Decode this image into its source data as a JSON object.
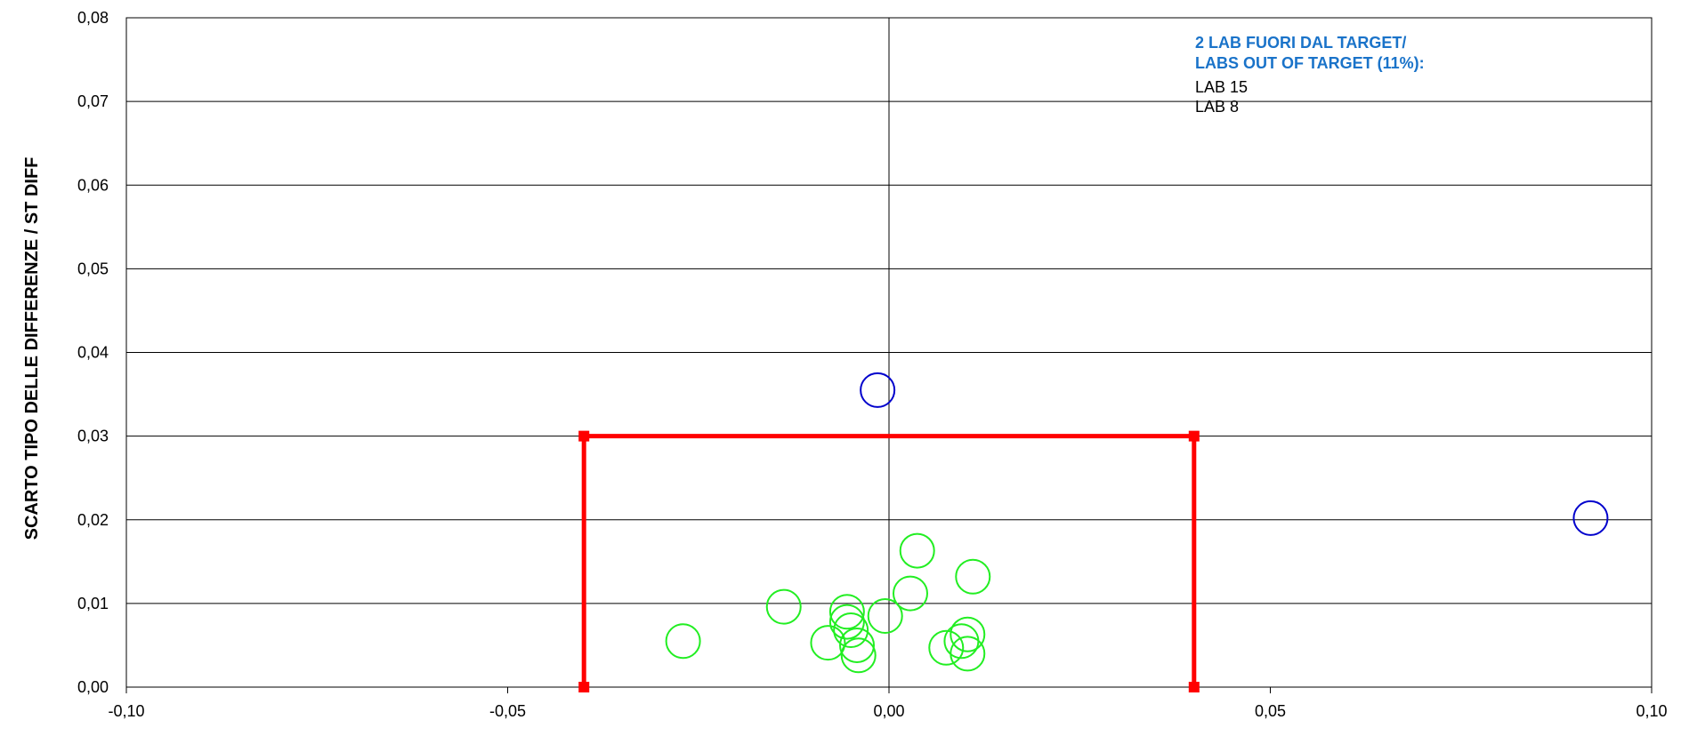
{
  "chart_data": {
    "type": "scatter",
    "title": "",
    "xlabel": "",
    "ylabel": "SCARTO TIPO DELLE DIFFERENZE / ST DIFF",
    "xlim": [
      -0.1,
      0.1
    ],
    "ylim": [
      0.0,
      0.08
    ],
    "x_ticks": [
      "-0,10",
      "-0,05",
      "0,00",
      "0,05",
      "0,10"
    ],
    "y_ticks": [
      "0,00",
      "0,01",
      "0,02",
      "0,03",
      "0,04",
      "0,05",
      "0,06",
      "0,07",
      "0,08"
    ],
    "grid": "horizontal",
    "target_box": {
      "color": "#ff0000",
      "x": [
        -0.04,
        0.04
      ],
      "y": [
        0.0,
        0.03
      ]
    },
    "series": [
      {
        "color": "#22ee22",
        "points": [
          {
            "x": -0.027,
            "y": 0.0055
          },
          {
            "x": -0.0138,
            "y": 0.0096
          },
          {
            "x": -0.008,
            "y": 0.0053
          },
          {
            "x": -0.0055,
            "y": 0.009
          },
          {
            "x": -0.0055,
            "y": 0.0078
          },
          {
            "x": -0.005,
            "y": 0.0068
          },
          {
            "x": -0.0042,
            "y": 0.005
          },
          {
            "x": -0.004,
            "y": 0.0038
          },
          {
            "x": -0.0005,
            "y": 0.0085
          },
          {
            "x": 0.0028,
            "y": 0.0112
          },
          {
            "x": 0.0037,
            "y": 0.0163
          },
          {
            "x": 0.0075,
            "y": 0.0047
          },
          {
            "x": 0.0095,
            "y": 0.0055
          },
          {
            "x": 0.0103,
            "y": 0.0063
          },
          {
            "x": 0.0103,
            "y": 0.004
          },
          {
            "x": 0.011,
            "y": 0.0132
          }
        ]
      },
      {
        "color": "#0000cc",
        "points": [
          {
            "x": -0.0015,
            "y": 0.0355
          },
          {
            "x": 0.092,
            "y": 0.0202
          }
        ]
      }
    ],
    "annotation": {
      "title_lines": [
        "2 LAB FUORI DAL TARGET/",
        "LABS OUT OF TARGET (11%):"
      ],
      "items": [
        "LAB 15",
        "LAB 8"
      ],
      "title_color": "#1a73c9"
    }
  }
}
